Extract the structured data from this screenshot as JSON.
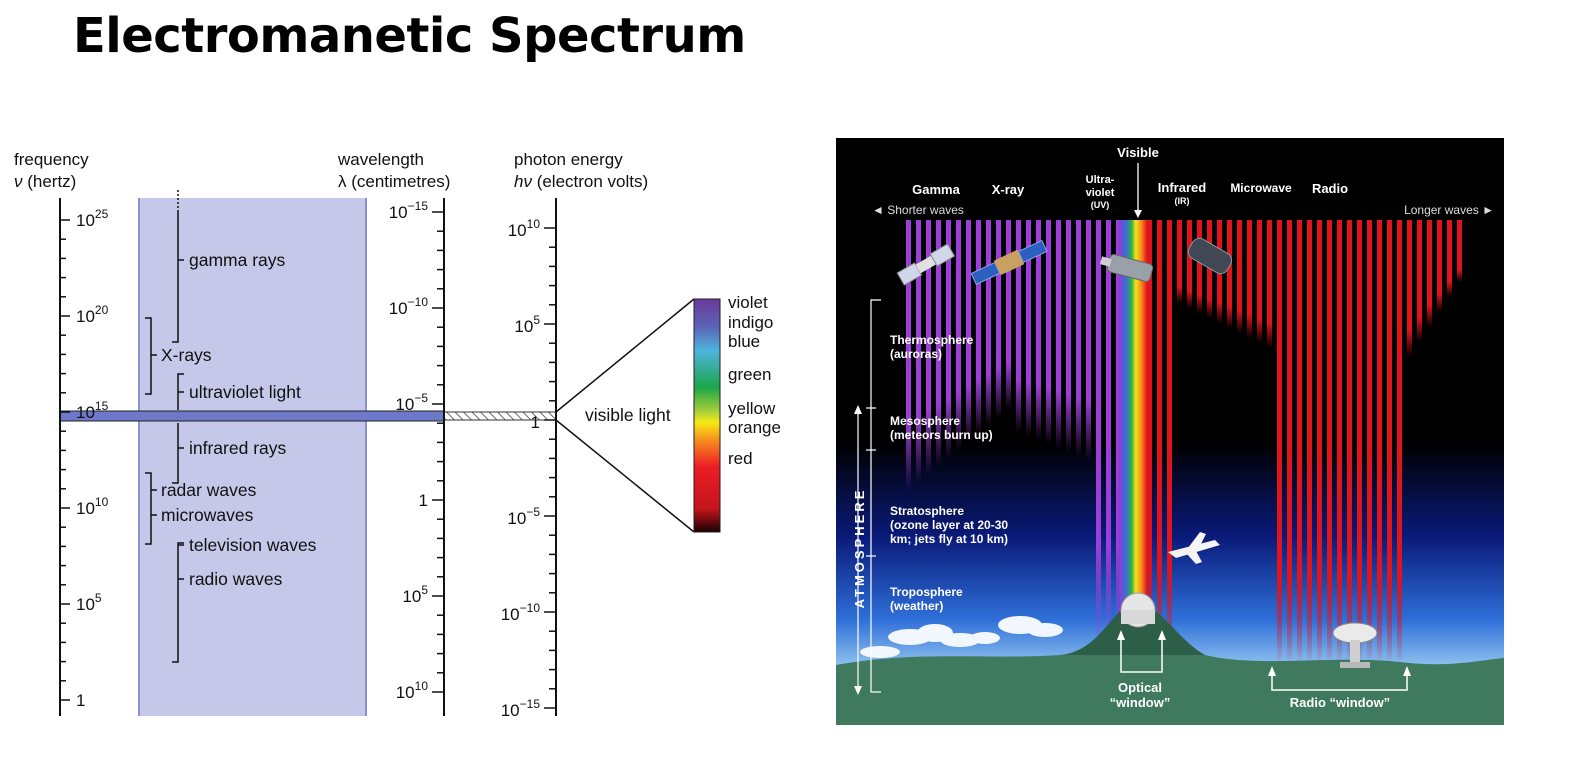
{
  "title": "Electromanetic Spectrum",
  "left_diagram": {
    "headers": {
      "frequency_line1": "frequency",
      "frequency_sym": "ν",
      "frequency_unit": " (hertz)",
      "wavelength_line1": "wavelength",
      "wavelength_line2": "λ (centimetres)",
      "energy_line1": "photon energy",
      "energy_sym": "hν",
      "energy_unit": " (electron volts)"
    },
    "frequency_ticks": [
      {
        "base": "10",
        "exp": "25"
      },
      {
        "base": "10",
        "exp": "20"
      },
      {
        "base": "10",
        "exp": "15"
      },
      {
        "base": "10",
        "exp": "10"
      },
      {
        "base": "10",
        "exp": "5"
      },
      {
        "base": "1",
        "exp": ""
      }
    ],
    "wavelength_ticks": [
      {
        "base": "10",
        "exp": "−15"
      },
      {
        "base": "10",
        "exp": "−10"
      },
      {
        "base": "10",
        "exp": "−5"
      },
      {
        "base": "1",
        "exp": ""
      },
      {
        "base": "10",
        "exp": "5"
      },
      {
        "base": "10",
        "exp": "10"
      }
    ],
    "energy_ticks": [
      {
        "base": "10",
        "exp": "10"
      },
      {
        "base": "10",
        "exp": "5"
      },
      {
        "base": "1",
        "exp": ""
      },
      {
        "base": "10",
        "exp": "−5"
      },
      {
        "base": "10",
        "exp": "−10"
      },
      {
        "base": "10",
        "exp": "−15"
      }
    ],
    "bands": {
      "gamma": "gamma rays",
      "xray": "X-rays",
      "uv": "ultraviolet light",
      "ir": "infrared rays",
      "radar": "radar waves",
      "micro": "microwaves",
      "tv": "television waves",
      "radio": "radio waves"
    },
    "visible_label": "visible light",
    "colors": [
      "violet",
      "indigo",
      "blue",
      "green",
      "yellow",
      "orange",
      "red"
    ],
    "band_color": "#c5c8e8",
    "strip_color": "#6d78c8"
  },
  "right_diagram": {
    "visible": "Visible",
    "gamma": "Gamma",
    "xray": "X-ray",
    "uv_line1": "Ultra-",
    "uv_line2": "violet",
    "uv_line3": "(UV)",
    "ir_line1": "Infrared",
    "ir_line2": "(IR)",
    "microwave": "Microwave",
    "radio": "Radio",
    "shorter": "◄ Shorter waves",
    "longer": "Longer waves ►",
    "thermo_1": "Thermosphere",
    "thermo_2": "(auroras)",
    "meso_1": "Mesosphere",
    "meso_2": "(meteors burn up)",
    "strato_1": "Stratosphere",
    "strato_2": "(ozone layer at 20-30",
    "strato_3": "km; jets fly at 10 km)",
    "tropo_1": "Troposphere",
    "tropo_2": "(weather)",
    "atmosphere": "ATMOSPHERE",
    "optical_1": "Optical",
    "optical_2": "“window”",
    "radio_window": "Radio “window”"
  }
}
